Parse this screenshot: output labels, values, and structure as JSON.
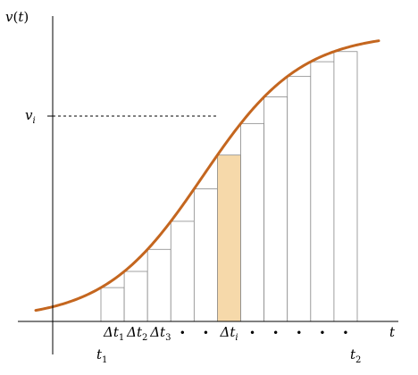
{
  "axis_labels": {
    "y_base": "v",
    "y_paren_open": "(",
    "y_var": "t",
    "y_paren_close": ")",
    "x": "t"
  },
  "vi_label": {
    "base": "v",
    "sub": "i"
  },
  "t1_label": {
    "base": "t",
    "sub": "1"
  },
  "t2_label": {
    "base": "t",
    "sub": "2"
  },
  "intervals": [
    {
      "type": "delta",
      "base": "Δt",
      "sub": "1"
    },
    {
      "type": "delta",
      "base": "Δt",
      "sub": "2"
    },
    {
      "type": "delta",
      "base": "Δt",
      "sub": "3"
    },
    {
      "type": "dot",
      "text": "•"
    },
    {
      "type": "dot",
      "text": "•"
    },
    {
      "type": "delta",
      "base": "Δt",
      "sub": "i",
      "highlight": true
    },
    {
      "type": "dot",
      "text": "•"
    },
    {
      "type": "dot",
      "text": "•"
    },
    {
      "type": "dot",
      "text": "•"
    },
    {
      "type": "dot",
      "text": "•"
    },
    {
      "type": "dot",
      "text": "•"
    }
  ],
  "colors": {
    "curve": "#c4661f",
    "highlight_fill": "#f6d9aa"
  }
}
